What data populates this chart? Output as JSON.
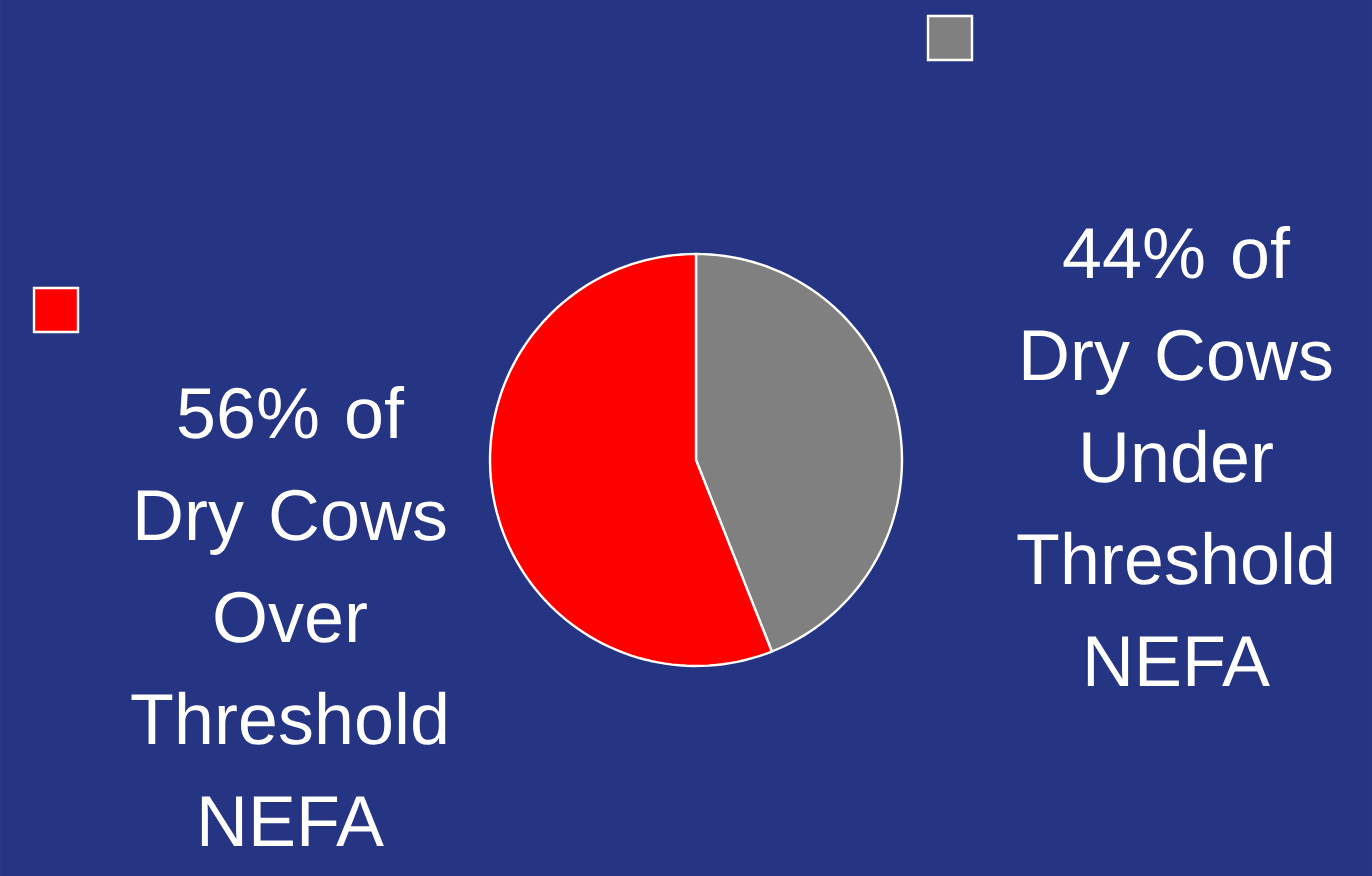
{
  "chart_data": {
    "type": "pie",
    "categories": [
      "44% of Dry Cows Under Threshold NEFA",
      "56% of Dry Cows Over Threshold NEFA"
    ],
    "values": [
      44,
      56
    ],
    "colors": [
      "#808080",
      "#ff0000"
    ]
  }
}
